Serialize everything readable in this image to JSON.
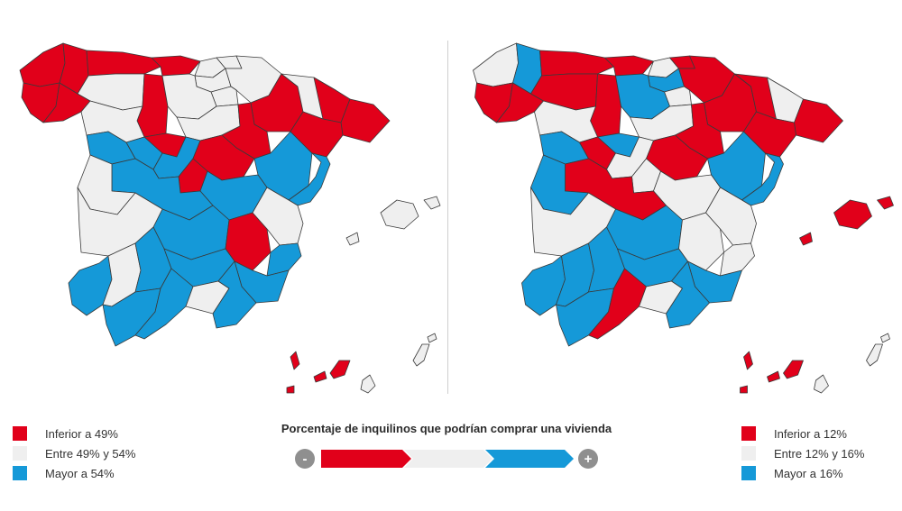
{
  "colors": {
    "low": "#e1001a",
    "mid": "#efefef",
    "high": "#1599d8",
    "border": "#3a3a3a",
    "scale_circle": "#8f8f8f"
  },
  "legend_left": {
    "items": [
      {
        "label": "Inferior a 49%",
        "color_key": "low"
      },
      {
        "label": "Entre 49% y 54%",
        "color_key": "mid"
      },
      {
        "label": "Mayor a 54%",
        "color_key": "high"
      }
    ]
  },
  "legend_right": {
    "items": [
      {
        "label": "Inferior a 12%",
        "color_key": "low"
      },
      {
        "label": "Entre 12% y 16%",
        "color_key": "mid"
      },
      {
        "label": "Mayor a 16%",
        "color_key": "high"
      }
    ]
  },
  "scale": {
    "title": "Porcentaje de inquilinos que podrían comprar una vivienda",
    "minus_label": "-",
    "plus_label": "+"
  }
}
